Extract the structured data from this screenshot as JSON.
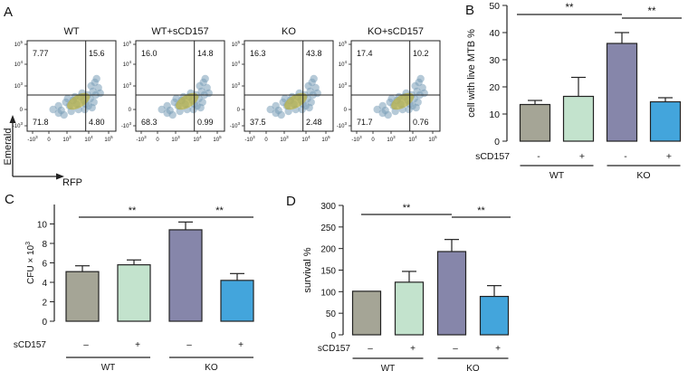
{
  "colors": {
    "bar_fills": [
      "#a5a596",
      "#c3e3cd",
      "#8686aa",
      "#43a5dc"
    ],
    "flow_points": "#7a9fb8",
    "flow_core": "#b6b14f"
  },
  "panel_a": {
    "letter": "A",
    "y_axis_label": "Emerald",
    "x_axis_label": "RFP",
    "plots": [
      {
        "title": "WT",
        "quadrants": {
          "ul": "7.77",
          "ur": "15.6",
          "ll": "71.8",
          "lr": "4.80"
        }
      },
      {
        "title": "WT+sCD157",
        "quadrants": {
          "ul": "16.0",
          "ur": "14.8",
          "ll": "68.3",
          "lr": "0.99"
        }
      },
      {
        "title": "KO",
        "quadrants": {
          "ul": "16.3",
          "ur": "43.8",
          "ll": "37.5",
          "lr": "2.48"
        }
      },
      {
        "title": "KO+sCD157",
        "quadrants": {
          "ul": "17.4",
          "ur": "10.2",
          "ll": "71.7",
          "lr": "0.76"
        }
      }
    ],
    "y_ticks": [
      {
        "base": "10",
        "exp": "5"
      },
      {
        "base": "10",
        "exp": "4"
      },
      {
        "base": "10",
        "exp": "3"
      },
      {
        "base": "0",
        "exp": ""
      },
      {
        "base": "-10",
        "exp": "3"
      }
    ],
    "x_ticks": [
      {
        "base": "-10",
        "exp": "3"
      },
      {
        "base": "0",
        "exp": ""
      },
      {
        "base": "10",
        "exp": "3"
      },
      {
        "base": "10",
        "exp": "4"
      },
      {
        "base": "10",
        "exp": "5"
      }
    ]
  },
  "chart_data": [
    {
      "panel": "B",
      "type": "bar",
      "ylabel": "cell with live MTB %",
      "ylim": [
        0,
        50
      ],
      "yticks": [
        0,
        10,
        20,
        30,
        40,
        50
      ],
      "treatment_label": "sCD157",
      "treatment_signs": [
        "-",
        "+",
        "-",
        "+"
      ],
      "groups": [
        "WT",
        "KO"
      ],
      "values": [
        13.5,
        16.5,
        36,
        14.5
      ],
      "errors": [
        1.5,
        7,
        4,
        1.5
      ],
      "significance": [
        {
          "from": 0,
          "to": 2,
          "label": "**"
        },
        {
          "from": 2,
          "to": 3,
          "label": "**"
        }
      ]
    },
    {
      "panel": "C",
      "type": "bar",
      "ylabel": "CFU × 10",
      "ylabel_sup": "3",
      "ylim": [
        0,
        12
      ],
      "yticks": [
        0,
        2,
        4,
        6,
        8,
        10
      ],
      "treatment_label": "sCD157",
      "treatment_signs": [
        "–",
        "+",
        "–",
        "+"
      ],
      "groups": [
        "WT",
        "KO"
      ],
      "values": [
        5.1,
        5.8,
        9.4,
        4.2
      ],
      "errors": [
        0.6,
        0.5,
        0.8,
        0.7
      ],
      "significance": [
        {
          "from": 0,
          "to": 2,
          "label": "**"
        },
        {
          "from": 2,
          "to": 3,
          "label": "**"
        }
      ]
    },
    {
      "panel": "D",
      "type": "bar",
      "ylabel": "survival %",
      "ylim": [
        0,
        300
      ],
      "yticks": [
        0,
        50,
        100,
        150,
        200,
        250,
        300
      ],
      "treatment_label": "sCD157",
      "treatment_signs": [
        "–",
        "+",
        "–",
        "+"
      ],
      "groups": [
        "WT",
        "KO"
      ],
      "values": [
        101,
        122,
        193,
        89
      ],
      "errors": [
        0,
        25,
        28,
        25
      ],
      "significance": [
        {
          "from": 0,
          "to": 2,
          "label": "**"
        },
        {
          "from": 2,
          "to": 3,
          "label": "**"
        }
      ]
    }
  ]
}
